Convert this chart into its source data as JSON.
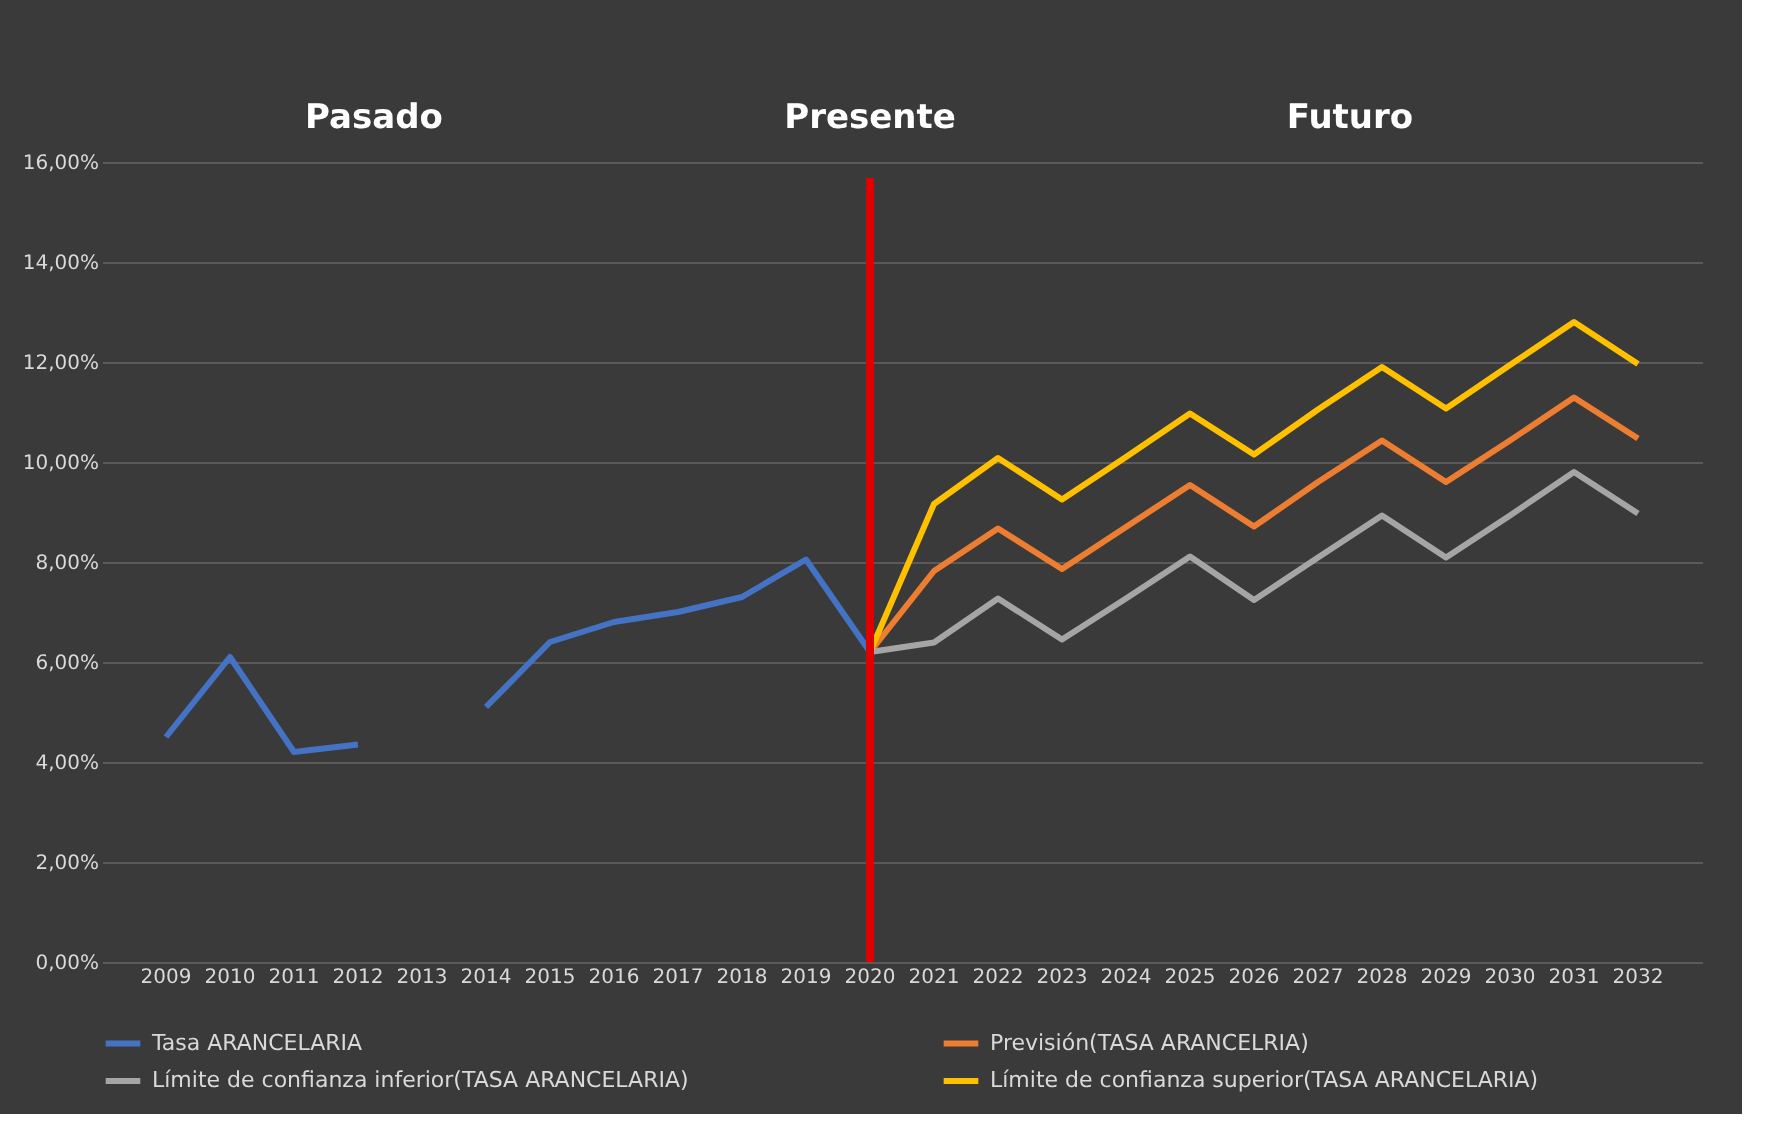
{
  "chart_data": {
    "type": "line",
    "categories": [
      "2009",
      "2010",
      "2011",
      "2012",
      "2013",
      "2014",
      "2015",
      "2016",
      "2017",
      "2018",
      "2019",
      "2020",
      "2021",
      "2022",
      "2023",
      "2024",
      "2025",
      "2026",
      "2027",
      "2028",
      "2029",
      "2030",
      "2031",
      "2032"
    ],
    "series": [
      {
        "name": "Tasa ARANCELARIA",
        "color": "#4472c4",
        "values": [
          4.5,
          6.1,
          4.2,
          4.35,
          null,
          5.1,
          6.4,
          6.8,
          7.0,
          7.3,
          8.05,
          6.2,
          null,
          null,
          null,
          null,
          null,
          null,
          null,
          null,
          null,
          null,
          null,
          null
        ]
      },
      {
        "name": "Previsión(TASA ARANCELRIA)",
        "color": "#ed7d31",
        "values": [
          null,
          null,
          null,
          null,
          null,
          null,
          null,
          null,
          null,
          null,
          null,
          6.2,
          7.82,
          8.67,
          7.86,
          8.7,
          9.54,
          8.71,
          9.6,
          10.43,
          9.6,
          10.43,
          11.29,
          10.47
        ]
      },
      {
        "name": "Límite de confianza inferior(TASA ARANCELARIA)",
        "color": "#a5a5a5",
        "values": [
          null,
          null,
          null,
          null,
          null,
          null,
          null,
          null,
          null,
          null,
          null,
          6.2,
          6.39,
          7.27,
          6.45,
          7.27,
          8.11,
          7.24,
          8.09,
          8.93,
          8.09,
          8.93,
          9.8,
          8.97
        ]
      },
      {
        "name": "Límite de confianza superior(TASA ARANCELARIA)",
        "color": "#ffc000",
        "values": [
          null,
          null,
          null,
          null,
          null,
          null,
          null,
          null,
          null,
          null,
          null,
          6.2,
          9.16,
          10.08,
          9.25,
          10.1,
          10.97,
          10.15,
          11.05,
          11.9,
          11.07,
          11.94,
          12.8,
          11.96
        ]
      }
    ],
    "ylim": [
      0,
      16
    ],
    "yticks": [
      {
        "value": 0,
        "label": "0,00%"
      },
      {
        "value": 2,
        "label": "2,00%"
      },
      {
        "value": 4,
        "label": "4,00%"
      },
      {
        "value": 6,
        "label": "6,00%"
      },
      {
        "value": 8,
        "label": "8,00%"
      },
      {
        "value": 10,
        "label": "10,00%"
      },
      {
        "value": 12,
        "label": "12,00%"
      },
      {
        "value": 14,
        "label": "14,00%"
      },
      {
        "value": 16,
        "label": "16,00%"
      }
    ],
    "ref_lines": [
      {
        "axis": "x",
        "value": "2020",
        "label": "Presente",
        "color": "#e00000"
      }
    ],
    "annotations": [
      "Pasado",
      "Futuro"
    ],
    "grid": "y",
    "legend": "bottom",
    "marker": "none",
    "line_style": "solid"
  }
}
